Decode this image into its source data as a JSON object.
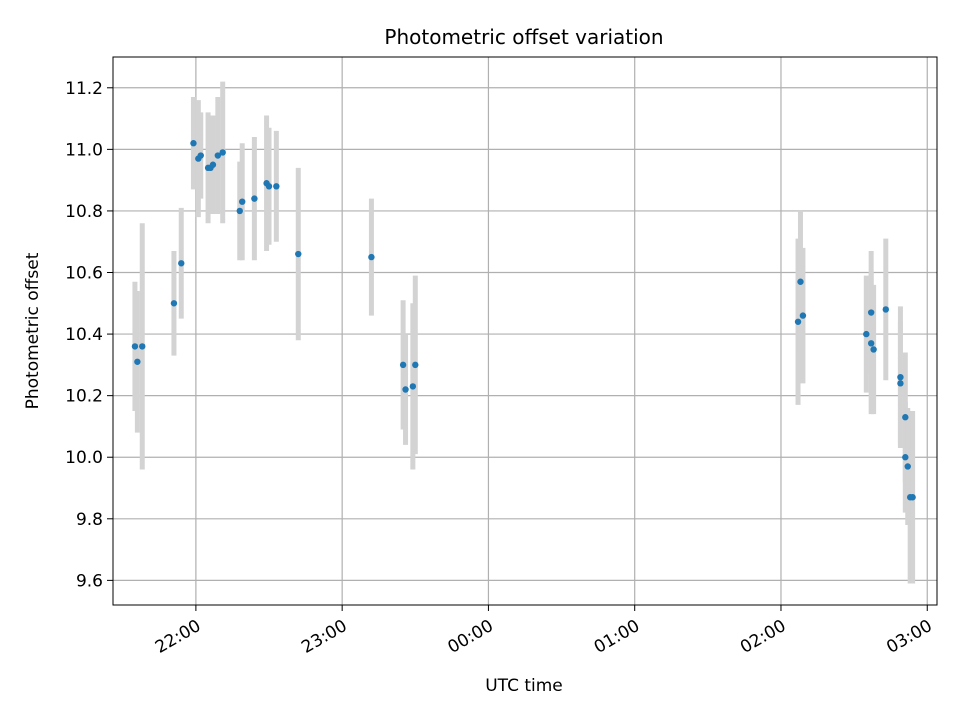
{
  "chart_data": {
    "type": "scatter",
    "title": "Photometric offset variation",
    "xlabel": "UTC time",
    "ylabel": "Photometric offset",
    "grid": true,
    "x_axis": {
      "kind": "time",
      "start": "21:26",
      "end": "03:04",
      "ticks": [
        "22:00",
        "23:00",
        "00:00",
        "01:00",
        "02:00",
        "03:00"
      ],
      "tick_label_rotation_deg": 30
    },
    "y_axis": {
      "min": 9.52,
      "max": 11.3,
      "ticks": [
        "9.6",
        "9.8",
        "10.0",
        "10.2",
        "10.4",
        "10.6",
        "10.8",
        "11.0",
        "11.2"
      ]
    },
    "colors": {
      "point": "#1f77b4",
      "error_bar": "#d3d3d3",
      "grid": "#b0b0b0"
    },
    "points": [
      {
        "x": "21:35",
        "y": 10.36,
        "err": 0.21
      },
      {
        "x": "21:36",
        "y": 10.31,
        "err": 0.23
      },
      {
        "x": "21:38",
        "y": 10.36,
        "err": 0.4
      },
      {
        "x": "21:51",
        "y": 10.5,
        "err": 0.17
      },
      {
        "x": "21:54",
        "y": 10.63,
        "err": 0.18
      },
      {
        "x": "21:59",
        "y": 11.02,
        "err": 0.15
      },
      {
        "x": "22:01",
        "y": 10.97,
        "err": 0.19
      },
      {
        "x": "22:02",
        "y": 10.98,
        "err": 0.14
      },
      {
        "x": "22:05",
        "y": 10.94,
        "err": 0.18
      },
      {
        "x": "22:06",
        "y": 10.94,
        "err": 0.15
      },
      {
        "x": "22:07",
        "y": 10.95,
        "err": 0.16
      },
      {
        "x": "22:09",
        "y": 10.98,
        "err": 0.19
      },
      {
        "x": "22:11",
        "y": 10.99,
        "err": 0.23
      },
      {
        "x": "22:18",
        "y": 10.8,
        "err": 0.16
      },
      {
        "x": "22:19",
        "y": 10.83,
        "err": 0.19
      },
      {
        "x": "22:24",
        "y": 10.84,
        "err": 0.2
      },
      {
        "x": "22:29",
        "y": 10.89,
        "err": 0.22
      },
      {
        "x": "22:30",
        "y": 10.88,
        "err": 0.19
      },
      {
        "x": "22:33",
        "y": 10.88,
        "err": 0.18
      },
      {
        "x": "22:42",
        "y": 10.66,
        "err": 0.28
      },
      {
        "x": "23:12",
        "y": 10.65,
        "err": 0.19
      },
      {
        "x": "23:25",
        "y": 10.3,
        "err": 0.21
      },
      {
        "x": "23:26",
        "y": 10.22,
        "err": 0.18
      },
      {
        "x": "23:29",
        "y": 10.23,
        "err": 0.27
      },
      {
        "x": "23:30",
        "y": 10.3,
        "err": 0.29
      },
      {
        "x": "02:07",
        "y": 10.44,
        "err": 0.27
      },
      {
        "x": "02:08",
        "y": 10.57,
        "err": 0.23
      },
      {
        "x": "02:09",
        "y": 10.46,
        "err": 0.22
      },
      {
        "x": "02:35",
        "y": 10.4,
        "err": 0.19
      },
      {
        "x": "02:37",
        "y": 10.47,
        "err": 0.2
      },
      {
        "x": "02:37",
        "y": 10.37,
        "err": 0.23
      },
      {
        "x": "02:38",
        "y": 10.35,
        "err": 0.21
      },
      {
        "x": "02:43",
        "y": 10.48,
        "err": 0.23
      },
      {
        "x": "02:49",
        "y": 10.26,
        "err": 0.23
      },
      {
        "x": "02:49",
        "y": 10.24,
        "err": 0.2
      },
      {
        "x": "02:51",
        "y": 10.13,
        "err": 0.21
      },
      {
        "x": "02:51",
        "y": 10.0,
        "err": 0.18
      },
      {
        "x": "02:52",
        "y": 9.97,
        "err": 0.19
      },
      {
        "x": "02:53",
        "y": 9.87,
        "err": 0.28
      },
      {
        "x": "02:54",
        "y": 9.87,
        "err": 0.28
      }
    ]
  }
}
